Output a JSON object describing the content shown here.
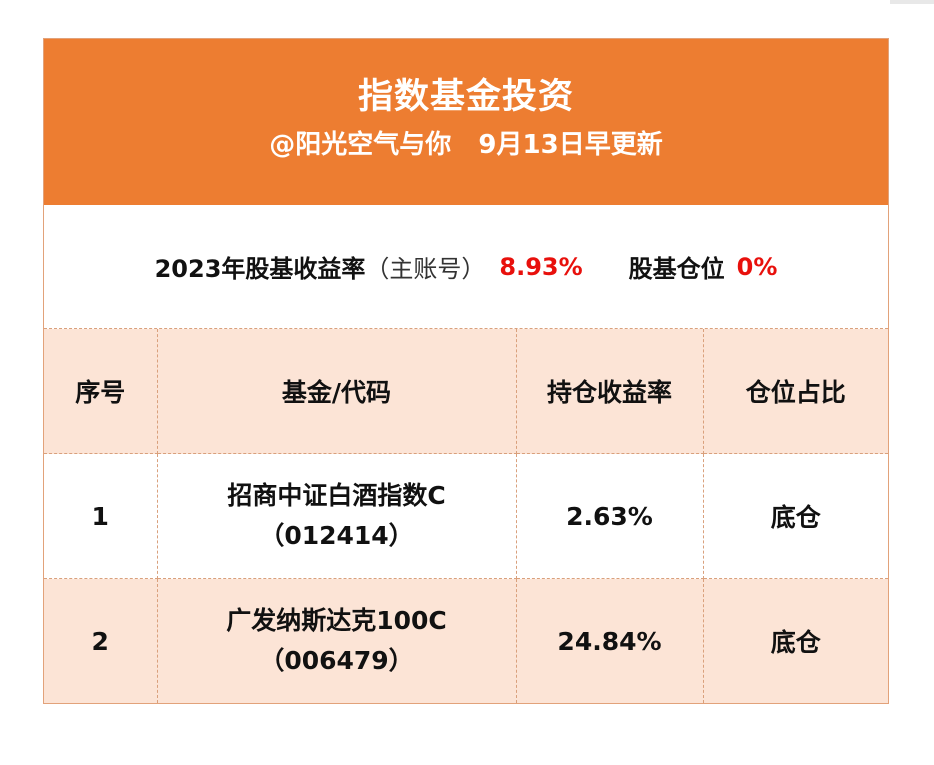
{
  "header": {
    "title": "指数基金投资",
    "subtitle": "@阳光空气与你   9月13日早更新"
  },
  "summary": {
    "return_label": "2023年股基收益率",
    "account_note": "（主账号）",
    "return_value": "8.93%",
    "position_label": "股基仓位",
    "position_value": "0%"
  },
  "table": {
    "columns": [
      "序号",
      "基金/代码",
      "持仓收益率",
      "仓位占比"
    ],
    "rows": [
      {
        "index": "1",
        "fund_name": "招商中证白酒指数C",
        "fund_code": "（012414）",
        "holding_return": "2.63%",
        "position_share": "底仓"
      },
      {
        "index": "2",
        "fund_name": "广发纳斯达克100C",
        "fund_code": "（006479）",
        "holding_return": "24.84%",
        "position_share": "底仓"
      }
    ]
  },
  "colors": {
    "header_bg": "#ed7d31",
    "header_text": "#ffffff",
    "row_tint": "#fce4d6",
    "highlight_red": "#e8100c",
    "border": "#d9a07c"
  }
}
